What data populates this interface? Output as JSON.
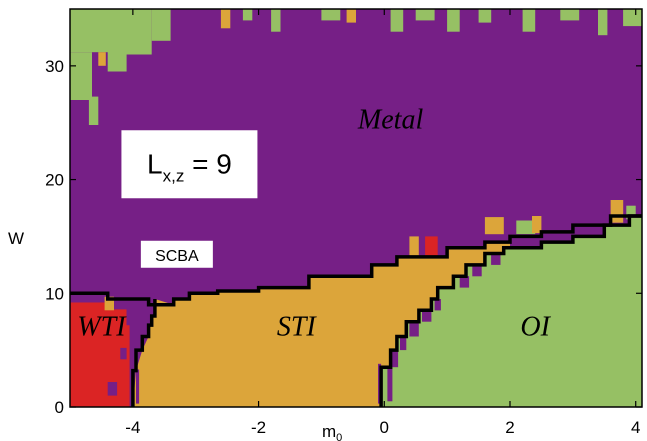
{
  "chart_data": {
    "type": "heatmap",
    "title": "",
    "xlabel": "m",
    "xlabel_sub": "0",
    "ylabel": "W",
    "xlim": [
      -5,
      4.1
    ],
    "ylim": [
      0,
      35
    ],
    "x_ticks": [
      -4,
      -2,
      0,
      2,
      4
    ],
    "y_ticks": [
      0,
      10,
      20,
      30
    ],
    "x_tick_labels": [
      "-4",
      "-2",
      "0",
      "2",
      "4"
    ],
    "y_tick_labels": [
      "0",
      "10",
      "20",
      "30"
    ],
    "colors": {
      "Metal": "#761f86",
      "STI": "#dca53a",
      "OI": "#96c064",
      "WTI": "#db2424",
      "boundary": "#000000"
    },
    "phases": [
      {
        "name": "Metal",
        "label": "Metal",
        "label_pos": [
          0.1,
          24.5
        ]
      },
      {
        "name": "STI",
        "label": "STI",
        "label_pos": [
          -1.4,
          6.3
        ]
      },
      {
        "name": "OI",
        "label": "OI",
        "label_pos": [
          2.4,
          6.3
        ]
      },
      {
        "name": "WTI",
        "label": "WTI",
        "label_pos": [
          -4.5,
          6.3
        ]
      }
    ],
    "boundaries": {
      "metal_insulator_upper": [
        [
          -5,
          10
        ],
        [
          -4.4,
          10
        ],
        [
          -4.4,
          9.5
        ],
        [
          -3.75,
          9.5
        ],
        [
          -3.75,
          9
        ],
        [
          -3.35,
          9
        ],
        [
          -3.35,
          9.5
        ],
        [
          -3.1,
          9.5
        ],
        [
          -3.1,
          10
        ],
        [
          -2.65,
          10
        ],
        [
          -2.65,
          10.2
        ],
        [
          -2.0,
          10.2
        ],
        [
          -2.0,
          10.5
        ],
        [
          -1.2,
          10.5
        ],
        [
          -1.2,
          11.5
        ],
        [
          -0.2,
          11.5
        ],
        [
          -0.2,
          12.5
        ],
        [
          0.2,
          12.5
        ],
        [
          0.2,
          13.2
        ],
        [
          1.0,
          13.2
        ],
        [
          1.0,
          14
        ],
        [
          1.6,
          14
        ],
        [
          1.6,
          14.5
        ],
        [
          2.0,
          14.5
        ],
        [
          2.0,
          15
        ],
        [
          2.5,
          15
        ],
        [
          2.5,
          15.4
        ],
        [
          3.0,
          15.4
        ],
        [
          3.0,
          16
        ],
        [
          3.6,
          16
        ],
        [
          3.6,
          16.8
        ],
        [
          4.1,
          16.8
        ]
      ],
      "wti_sti": [
        [
          -4.0,
          0
        ],
        [
          -4.0,
          3.2
        ],
        [
          -3.95,
          3.2
        ],
        [
          -3.95,
          5
        ],
        [
          -3.85,
          5
        ],
        [
          -3.85,
          6.2
        ],
        [
          -3.75,
          6.2
        ],
        [
          -3.75,
          7.2
        ],
        [
          -3.7,
          7.2
        ],
        [
          -3.7,
          8
        ],
        [
          -3.65,
          8
        ],
        [
          -3.65,
          9.5
        ]
      ],
      "sti_oi": [
        [
          -0.05,
          0
        ],
        [
          -0.05,
          3.5
        ],
        [
          0.1,
          3.5
        ],
        [
          0.1,
          5
        ],
        [
          0.2,
          5
        ],
        [
          0.2,
          6.2
        ],
        [
          0.35,
          6.2
        ],
        [
          0.35,
          7.5
        ],
        [
          0.55,
          7.5
        ],
        [
          0.55,
          8.5
        ],
        [
          0.75,
          8.5
        ],
        [
          0.75,
          9.5
        ],
        [
          0.85,
          9.5
        ],
        [
          0.85,
          10.5
        ],
        [
          1.1,
          10.5
        ],
        [
          1.1,
          11.5
        ],
        [
          1.3,
          11.5
        ],
        [
          1.3,
          12.5
        ],
        [
          1.6,
          12.5
        ],
        [
          1.6,
          13.5
        ],
        [
          1.9,
          13.5
        ],
        [
          1.9,
          14
        ],
        [
          2.5,
          14
        ],
        [
          2.5,
          14.5
        ],
        [
          3.0,
          14.5
        ],
        [
          3.0,
          15
        ],
        [
          3.5,
          15
        ],
        [
          3.5,
          16
        ],
        [
          3.9,
          16
        ],
        [
          3.9,
          16.8
        ],
        [
          4.1,
          16.8
        ]
      ]
    },
    "annotations": [
      {
        "text": "SCBA",
        "pos": [
          -3.3,
          13.3
        ]
      },
      {
        "text_main": "L",
        "text_sub": "x,z",
        "text_rest": " = 9",
        "pos": [
          -3.1,
          19.5
        ]
      }
    ],
    "grid": false,
    "legend": "none"
  }
}
